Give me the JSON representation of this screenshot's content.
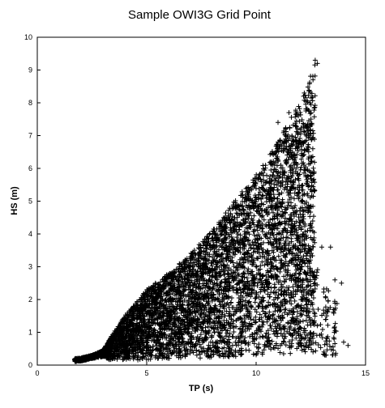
{
  "chart_data": {
    "type": "scatter",
    "title": "Sample OWI3G Grid Point",
    "xlabel": "TP (s)",
    "ylabel": "HS (m)",
    "xlim": [
      0,
      15
    ],
    "ylim": [
      0,
      10
    ],
    "xticks": [
      0,
      5,
      10,
      15
    ],
    "yticks": [
      0,
      1,
      2,
      3,
      4,
      5,
      6,
      7,
      8,
      9,
      10
    ],
    "marker": "plus",
    "marker_color": "#000000",
    "grid": false,
    "legend": "none",
    "envelope": {
      "description_values": "approximate density envelope of points, [TP, HS_min, HS_max]",
      "profile": [
        [
          1.7,
          0.1,
          0.2
        ],
        [
          2.0,
          0.12,
          0.22
        ],
        [
          2.5,
          0.2,
          0.3
        ],
        [
          3.0,
          0.3,
          0.45
        ],
        [
          3.3,
          0.15,
          0.8
        ],
        [
          4.0,
          0.15,
          1.5
        ],
        [
          5.0,
          0.15,
          2.3
        ],
        [
          6.0,
          0.2,
          2.8
        ],
        [
          7.0,
          0.2,
          3.4
        ],
        [
          8.0,
          0.2,
          4.1
        ],
        [
          9.0,
          0.25,
          5.0
        ],
        [
          10.0,
          0.3,
          5.8
        ],
        [
          10.8,
          0.35,
          6.6
        ],
        [
          11.3,
          0.4,
          7.2
        ],
        [
          11.8,
          0.45,
          7.8
        ],
        [
          12.3,
          0.5,
          8.4
        ],
        [
          12.7,
          0.6,
          9.3
        ]
      ]
    },
    "notable_points": [
      [
        12.7,
        9.3
      ],
      [
        12.8,
        9.2
      ],
      [
        12.6,
        8.7
      ],
      [
        12.2,
        8.3
      ],
      [
        11.5,
        7.7
      ],
      [
        11.0,
        7.4
      ],
      [
        13.0,
        3.6
      ],
      [
        13.4,
        3.6
      ],
      [
        13.6,
        2.6
      ],
      [
        13.9,
        2.5
      ],
      [
        14.2,
        0.6
      ],
      [
        14.0,
        0.7
      ],
      [
        13.1,
        0.4
      ],
      [
        12.6,
        0.4
      ],
      [
        4.8,
        0.2
      ],
      [
        11.0,
        4.6
      ],
      [
        11.6,
        4.3
      ],
      [
        12.1,
        3.0
      ],
      [
        12.4,
        1.6
      ],
      [
        12.8,
        1.2
      ]
    ]
  }
}
